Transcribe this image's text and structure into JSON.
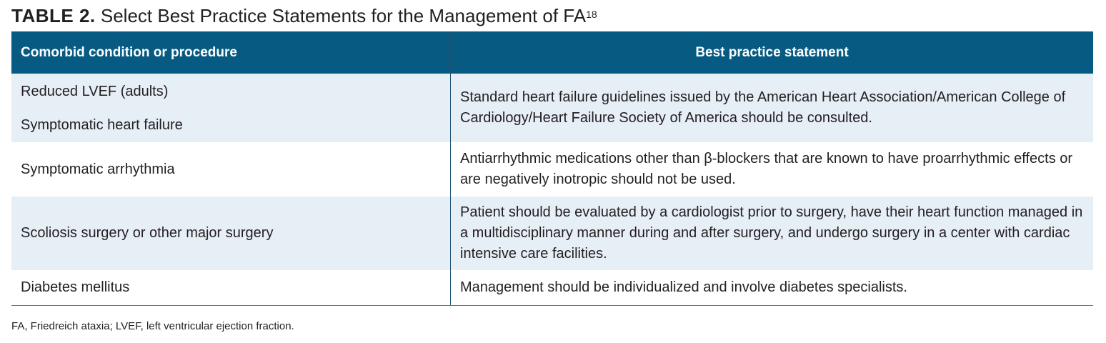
{
  "title": {
    "label": "TABLE 2.",
    "text": "Select Best Practice Statements for the Management of FA",
    "ref": "18"
  },
  "table": {
    "headers": [
      "Comorbid condition or procedure",
      "Best practice statement"
    ],
    "rows": [
      {
        "conditions": [
          "Reduced LVEF (adults)",
          "Symptomatic heart failure"
        ],
        "statement": "Standard heart failure guidelines issued by the American Heart Association/American College of Cardiology/Heart Failure Society of America should be consulted."
      },
      {
        "conditions": [
          "Symptomatic arrhythmia"
        ],
        "statement": "Antiarrhythmic medications other than β-blockers that are known to have proarrhythmic effects or are negatively inotropic should not be used."
      },
      {
        "conditions": [
          "Scoliosis surgery or other major surgery"
        ],
        "statement": "Patient should be evaluated by a cardiologist prior to surgery, have their heart function managed in a multidisciplinary manner during and after surgery, and undergo surgery in a center with cardiac intensive care facilities."
      },
      {
        "conditions": [
          "Diabetes mellitus"
        ],
        "statement": "Management should be individualized and involve diabetes specialists."
      }
    ]
  },
  "footnote": "FA, Friedreich ataxia; LVEF, left ventricular ejection fraction.",
  "colors": {
    "header_bg": "#075b82",
    "alt_row_bg": "#e6eef6"
  }
}
